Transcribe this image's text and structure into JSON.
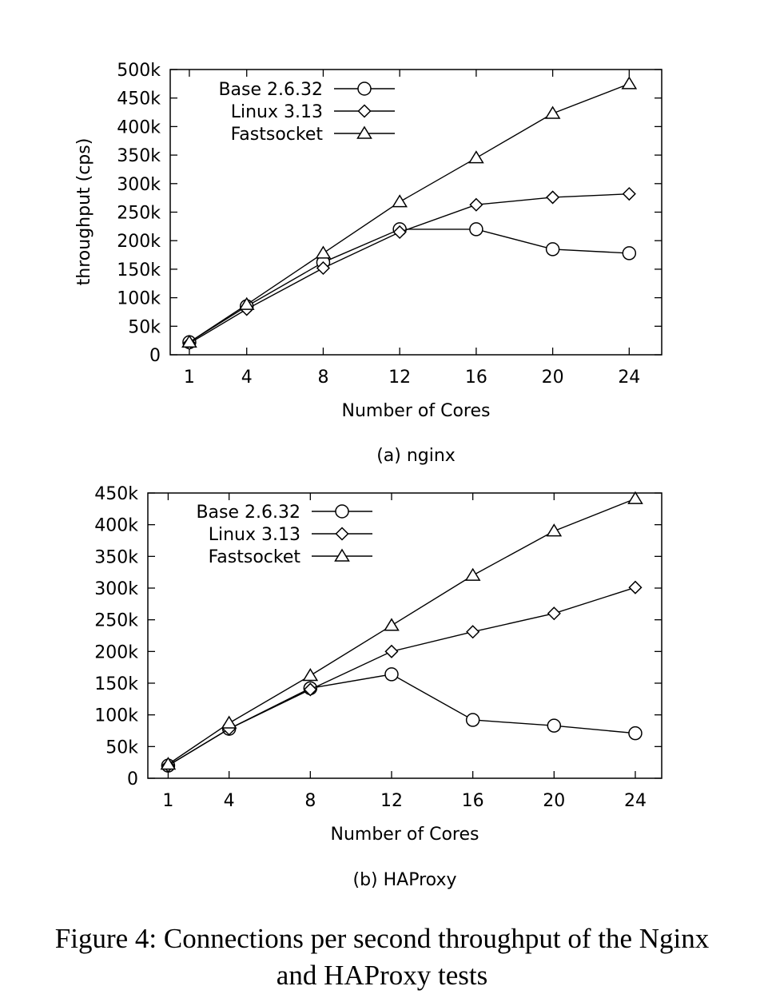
{
  "chart_data": [
    {
      "type": "line",
      "subcaption": "(a) nginx",
      "xlabel": "Number of Cores",
      "ylabel": "throughput (cps)",
      "x": [
        1,
        4,
        8,
        12,
        16,
        20,
        24
      ],
      "xticks": [
        "1",
        "4",
        "8",
        "12",
        "16",
        "20",
        "24"
      ],
      "yticks": [
        "0",
        "50k",
        "100k",
        "150k",
        "200k",
        "250k",
        "300k",
        "350k",
        "400k",
        "450k",
        "500k"
      ],
      "ylim": [
        0,
        500000
      ],
      "legend_position": "top-left",
      "grid": false,
      "series": [
        {
          "name": "Base 2.6.32",
          "marker": "circle",
          "values": [
            22000,
            85000,
            162000,
            220000,
            220000,
            185000,
            178000
          ]
        },
        {
          "name": "Linux 3.13",
          "marker": "diamond",
          "values": [
            20000,
            80000,
            152000,
            215000,
            263000,
            276000,
            282000
          ]
        },
        {
          "name": "Fastsocket",
          "marker": "triangle",
          "values": [
            22000,
            88000,
            178000,
            268000,
            345000,
            423000,
            475000
          ]
        }
      ]
    },
    {
      "type": "line",
      "subcaption": "(b) HAProxy",
      "xlabel": "Number of Cores",
      "ylabel": "",
      "x": [
        1,
        4,
        8,
        12,
        16,
        20,
        24
      ],
      "xticks": [
        "1",
        "4",
        "8",
        "12",
        "16",
        "20",
        "24"
      ],
      "yticks": [
        "0",
        "50k",
        "100k",
        "150k",
        "200k",
        "250k",
        "300k",
        "350k",
        "400k",
        "450k"
      ],
      "ylim": [
        0,
        450000
      ],
      "legend_position": "top-left",
      "grid": false,
      "series": [
        {
          "name": "Base 2.6.32",
          "marker": "circle",
          "values": [
            20000,
            78000,
            142000,
            164000,
            92000,
            83000,
            71000
          ]
        },
        {
          "name": "Linux 3.13",
          "marker": "diamond",
          "values": [
            20000,
            78000,
            140000,
            200000,
            231000,
            260000,
            301000
          ]
        },
        {
          "name": "Fastsocket",
          "marker": "triangle",
          "values": [
            22000,
            87000,
            162000,
            241000,
            320000,
            390000,
            441000
          ]
        }
      ]
    }
  ],
  "figure_caption_line1": "Figure 4: Connections per second throughput of the Nginx",
  "figure_caption_line2": "and HAProxy tests"
}
